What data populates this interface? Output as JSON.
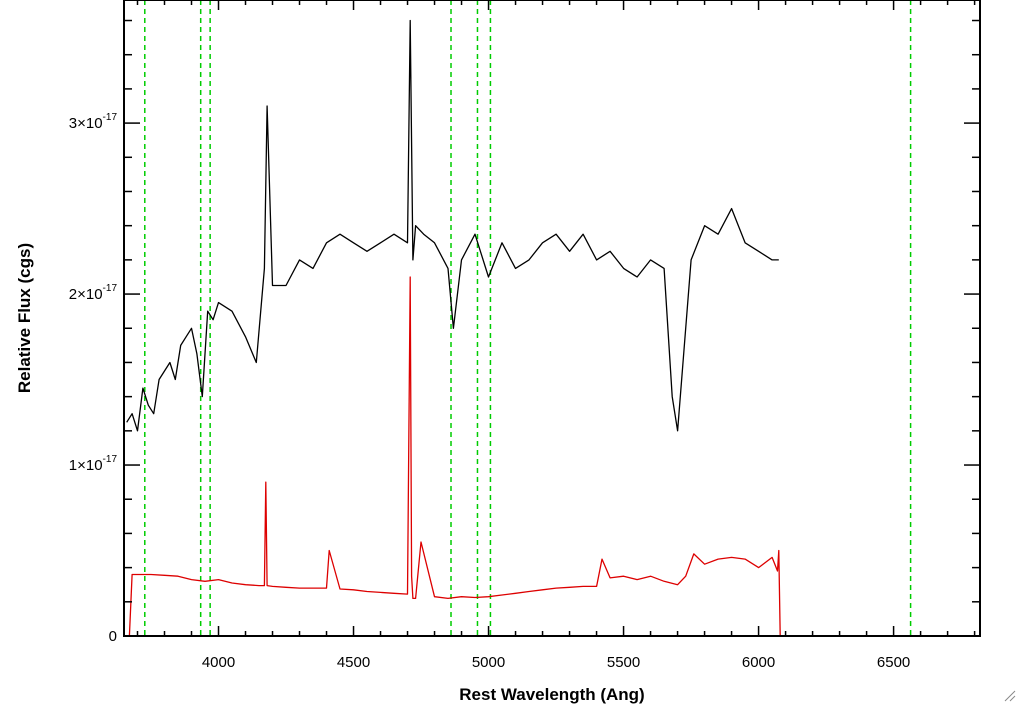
{
  "chart_data": {
    "type": "line",
    "title": "",
    "xlabel": "Rest Wavelength (Ang)",
    "ylabel": "Relative Flux (cgs)",
    "xlim": [
      3650,
      6820
    ],
    "ylim": [
      0,
      3.72e-17
    ],
    "x_ticks": [
      {
        "value": 4000,
        "label": "4000"
      },
      {
        "value": 4500,
        "label": "4500"
      },
      {
        "value": 5000,
        "label": "5000"
      },
      {
        "value": 5500,
        "label": "5500"
      },
      {
        "value": 6000,
        "label": "6000"
      },
      {
        "value": 6500,
        "label": "6500"
      }
    ],
    "y_ticks": [
      {
        "value": 0,
        "mant": "0",
        "exp": ""
      },
      {
        "value": 1e-17,
        "mant": "1×10",
        "exp": "-17"
      },
      {
        "value": 2e-17,
        "mant": "2×10",
        "exp": "-17"
      },
      {
        "value": 3e-17,
        "mant": "3×10",
        "exp": "-17"
      }
    ],
    "grid": false,
    "legend": "none",
    "series": [
      {
        "color": "#000000",
        "x": [
          3660,
          3680,
          3700,
          3720,
          3740,
          3760,
          3780,
          3800,
          3820,
          3840,
          3860,
          3880,
          3900,
          3920,
          3940,
          3960,
          3980,
          4000,
          4050,
          4100,
          4140,
          4170,
          4180,
          4200,
          4250,
          4300,
          4350,
          4400,
          4450,
          4500,
          4550,
          4600,
          4650,
          4700,
          4710,
          4720,
          4730,
          4760,
          4800,
          4850,
          4870,
          4900,
          4950,
          5000,
          5050,
          5100,
          5150,
          5200,
          5250,
          5300,
          5350,
          5400,
          5450,
          5500,
          5550,
          5600,
          5650,
          5680,
          5700,
          5720,
          5750,
          5800,
          5850,
          5900,
          5950,
          6000,
          6050,
          6075
        ],
        "y": [
          1.25e-17,
          1.3e-17,
          1.2e-17,
          1.45e-17,
          1.35e-17,
          1.3e-17,
          1.5e-17,
          1.55e-17,
          1.6e-17,
          1.5e-17,
          1.7e-17,
          1.75e-17,
          1.8e-17,
          1.65e-17,
          1.4e-17,
          1.9e-17,
          1.85e-17,
          1.95e-17,
          1.9e-17,
          1.75e-17,
          1.6e-17,
          2.15e-17,
          3.1e-17,
          2.05e-17,
          2.05e-17,
          2.2e-17,
          2.15e-17,
          2.3e-17,
          2.35e-17,
          2.3e-17,
          2.25e-17,
          2.3e-17,
          2.35e-17,
          2.3e-17,
          3.6e-17,
          2.2e-17,
          2.4e-17,
          2.35e-17,
          2.3e-17,
          2.15e-17,
          1.8e-17,
          2.2e-17,
          2.35e-17,
          2.1e-17,
          2.3e-17,
          2.15e-17,
          2.2e-17,
          2.3e-17,
          2.35e-17,
          2.25e-17,
          2.35e-17,
          2.2e-17,
          2.25e-17,
          2.15e-17,
          2.1e-17,
          2.2e-17,
          2.15e-17,
          1.4e-17,
          1.2e-17,
          1.6e-17,
          2.2e-17,
          2.4e-17,
          2.35e-17,
          2.5e-17,
          2.3e-17,
          2.25e-17,
          2.2e-17,
          2.2e-17
        ]
      },
      {
        "color": "#dd0000",
        "x": [
          3650,
          3670,
          3680,
          3700,
          3750,
          3800,
          3850,
          3900,
          3950,
          4000,
          4050,
          4100,
          4150,
          4170,
          4175,
          4180,
          4200,
          4250,
          4300,
          4350,
          4400,
          4410,
          4450,
          4500,
          4550,
          4600,
          4650,
          4700,
          4710,
          4715,
          4720,
          4725,
          4730,
          4750,
          4800,
          4850,
          4900,
          4950,
          5000,
          5050,
          5100,
          5150,
          5200,
          5250,
          5300,
          5350,
          5400,
          5420,
          5450,
          5500,
          5550,
          5600,
          5650,
          5700,
          5730,
          5760,
          5800,
          5850,
          5900,
          5950,
          6000,
          6050,
          6070,
          6075,
          6080,
          6200,
          6400,
          6600,
          6820
        ],
        "y": [
          0,
          0,
          3.6e-18,
          3.6e-18,
          3.6e-18,
          3.55e-18,
          3.5e-18,
          3.3e-18,
          3.2e-18,
          3.3e-18,
          3.1e-18,
          3e-18,
          2.95e-18,
          2.95e-18,
          9e-18,
          2.95e-18,
          2.9e-18,
          2.85e-18,
          2.8e-18,
          2.8e-18,
          2.8e-18,
          5e-18,
          2.75e-18,
          2.7e-18,
          2.6e-18,
          2.55e-18,
          2.5e-18,
          2.45e-18,
          2.1e-17,
          3.5e-18,
          2.2e-18,
          2.2e-18,
          2.2e-18,
          5.5e-18,
          2.3e-18,
          2.2e-18,
          2.3e-18,
          2.25e-18,
          2.3e-18,
          2.4e-18,
          2.5e-18,
          2.6e-18,
          2.7e-18,
          2.8e-18,
          2.85e-18,
          2.9e-18,
          2.9e-18,
          4.5e-18,
          3.4e-18,
          3.5e-18,
          3.3e-18,
          3.5e-18,
          3.2e-18,
          3e-18,
          3.5e-18,
          4.8e-18,
          4.2e-18,
          4.5e-18,
          4.6e-18,
          4.5e-18,
          4e-18,
          4.6e-18,
          3.8e-18,
          5e-18,
          0,
          0,
          0,
          0,
          0
        ]
      }
    ],
    "vlines": {
      "color": "#00cc00",
      "style": "dashed",
      "x": [
        3727,
        3934,
        3969,
        4861,
        4959,
        5007,
        6563
      ]
    }
  }
}
